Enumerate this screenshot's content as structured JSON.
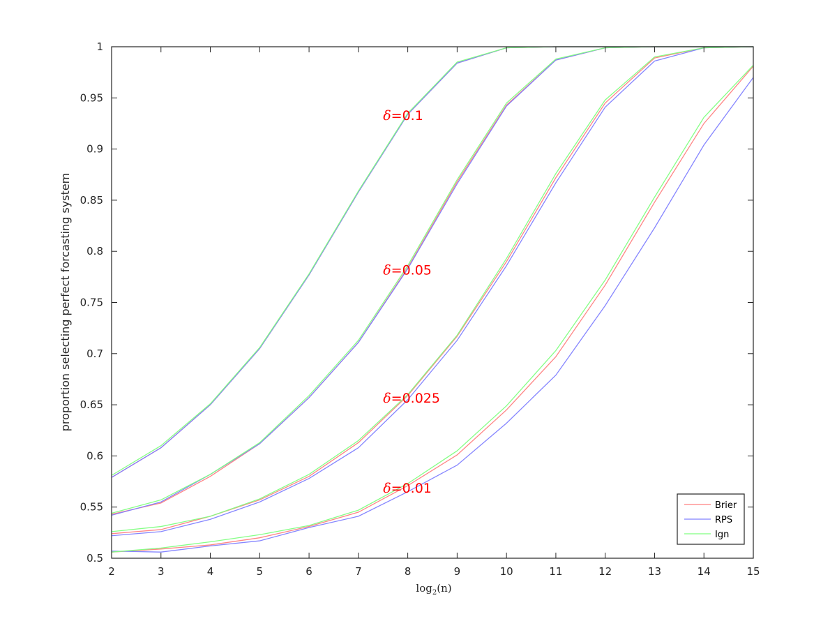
{
  "chart_data": {
    "type": "line",
    "xlabel_prefix": "log",
    "xlabel_sub": "2",
    "xlabel_suffix": "(n)",
    "ylabel": "proportion selecting perfect forcasting system",
    "xlim": [
      2,
      15
    ],
    "ylim": [
      0.5,
      1
    ],
    "x": [
      2,
      3,
      4,
      5,
      6,
      7,
      8,
      9,
      10,
      11,
      12,
      13,
      14,
      15
    ],
    "xticks": [
      "2",
      "3",
      "4",
      "5",
      "6",
      "7",
      "8",
      "9",
      "10",
      "11",
      "12",
      "13",
      "14",
      "15"
    ],
    "yticks": [
      0.5,
      0.55,
      0.6,
      0.65,
      0.7,
      0.75,
      0.8,
      0.85,
      0.9,
      0.95,
      1
    ],
    "ytick_labels": [
      "0.5",
      "0.55",
      "0.6",
      "0.65",
      "0.7",
      "0.75",
      "0.8",
      "0.85",
      "0.9",
      "0.95",
      "1"
    ],
    "grid": false,
    "legend_position": "bottom-right",
    "colors": {
      "Brier": "#ff8080",
      "RPS": "#8080ff",
      "Ign": "#80ff80",
      "annotation": "#ff0000"
    },
    "legend": [
      "Brier",
      "RPS",
      "Ign"
    ],
    "groups": [
      {
        "delta_symbol": "δ",
        "label": "=0.1",
        "label_x": 7.5,
        "label_y": 0.933,
        "series": [
          {
            "name": "Brier",
            "values": [
              0.579,
              0.608,
              0.65,
              0.705,
              0.777,
              0.858,
              0.934,
              0.984,
              0.999,
              1.0,
              1.0,
              1.0,
              1.0,
              1.0
            ]
          },
          {
            "name": "RPS",
            "values": [
              0.579,
              0.608,
              0.65,
              0.705,
              0.777,
              0.858,
              0.934,
              0.984,
              0.999,
              1.0,
              1.0,
              1.0,
              1.0,
              1.0
            ]
          },
          {
            "name": "Ign",
            "values": [
              0.581,
              0.61,
              0.651,
              0.706,
              0.778,
              0.859,
              0.935,
              0.985,
              0.999,
              1.0,
              1.0,
              1.0,
              1.0,
              1.0
            ]
          }
        ]
      },
      {
        "delta_symbol": "δ",
        "label": "=0.05",
        "label_x": 7.5,
        "label_y": 0.782,
        "series": [
          {
            "name": "Brier",
            "values": [
              0.543,
              0.554,
              0.58,
              0.612,
              0.657,
              0.711,
              0.784,
              0.868,
              0.943,
              0.987,
              0.999,
              1.0,
              1.0,
              1.0
            ]
          },
          {
            "name": "RPS",
            "values": [
              0.542,
              0.555,
              0.582,
              0.612,
              0.657,
              0.711,
              0.783,
              0.866,
              0.942,
              0.987,
              0.999,
              1.0,
              1.0,
              1.0
            ]
          },
          {
            "name": "Ign",
            "values": [
              0.544,
              0.557,
              0.582,
              0.613,
              0.659,
              0.713,
              0.786,
              0.87,
              0.945,
              0.988,
              0.999,
              1.0,
              1.0,
              1.0
            ]
          }
        ]
      },
      {
        "delta_symbol": "δ",
        "label": "=0.025",
        "label_x": 7.5,
        "label_y": 0.657,
        "series": [
          {
            "name": "Brier",
            "values": [
              0.524,
              0.528,
              0.541,
              0.557,
              0.58,
              0.613,
              0.659,
              0.717,
              0.79,
              0.872,
              0.945,
              0.989,
              0.999,
              1.0
            ]
          },
          {
            "name": "RPS",
            "values": [
              0.522,
              0.526,
              0.538,
              0.555,
              0.578,
              0.608,
              0.655,
              0.713,
              0.786,
              0.867,
              0.941,
              0.986,
              0.999,
              1.0
            ]
          },
          {
            "name": "Ign",
            "values": [
              0.526,
              0.531,
              0.541,
              0.558,
              0.582,
              0.615,
              0.66,
              0.718,
              0.793,
              0.876,
              0.948,
              0.99,
              0.999,
              1.0
            ]
          }
        ]
      },
      {
        "delta_symbol": "δ",
        "label": "=0.01",
        "label_x": 7.5,
        "label_y": 0.569,
        "series": [
          {
            "name": "Brier",
            "values": [
              0.506,
              0.509,
              0.513,
              0.52,
              0.531,
              0.545,
              0.571,
              0.601,
              0.645,
              0.697,
              0.767,
              0.848,
              0.925,
              0.981
            ]
          },
          {
            "name": "RPS",
            "values": [
              0.507,
              0.506,
              0.512,
              0.517,
              0.53,
              0.541,
              0.565,
              0.591,
              0.632,
              0.679,
              0.747,
              0.823,
              0.904,
              0.97
            ]
          },
          {
            "name": "Ign",
            "values": [
              0.506,
              0.51,
              0.516,
              0.523,
              0.532,
              0.547,
              0.573,
              0.605,
              0.649,
              0.703,
              0.772,
              0.853,
              0.931,
              0.982
            ]
          }
        ]
      }
    ]
  }
}
